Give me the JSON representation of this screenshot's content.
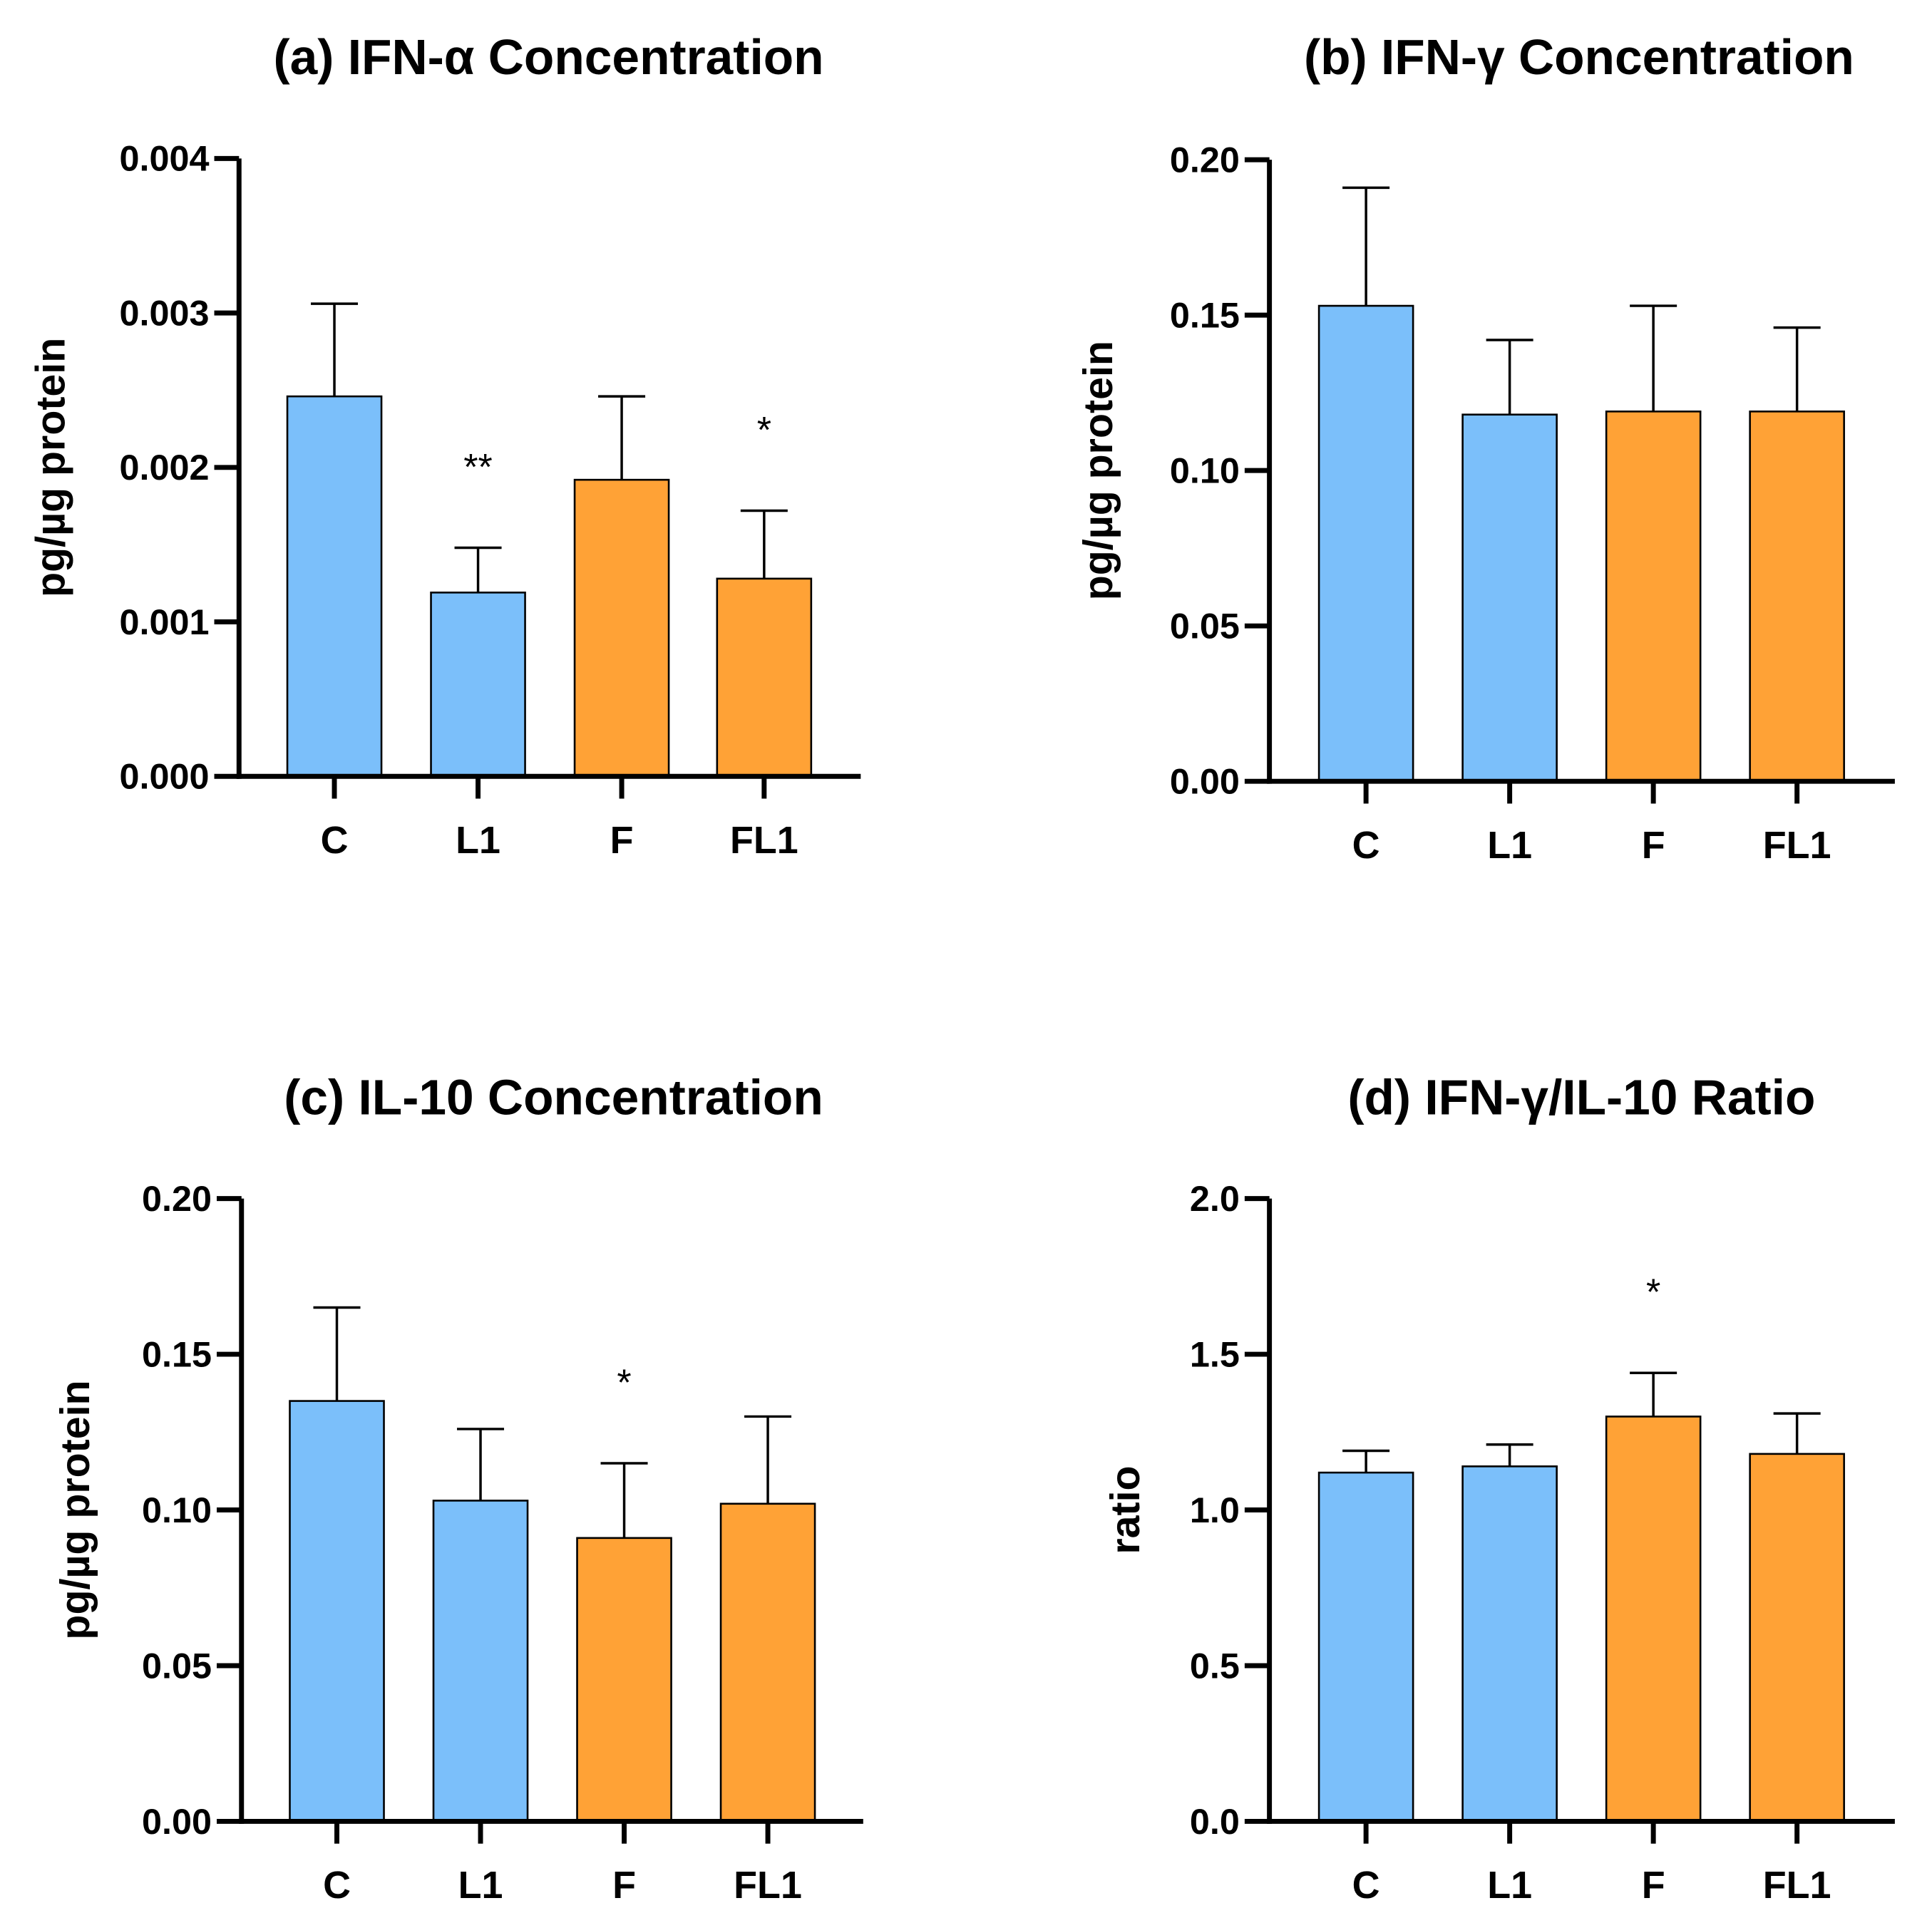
{
  "colors": {
    "blue": "#7bbffa",
    "orange": "#ffa236",
    "axis": "#000000"
  },
  "chart_data": [
    {
      "type": "bar",
      "title": "(a) IFN-α Concentration",
      "ylabel": "pg/µg protein",
      "xlabel": "",
      "categories": [
        "C",
        "L1",
        "F",
        "FL1"
      ],
      "values": [
        0.00246,
        0.00119,
        0.00192,
        0.00128
      ],
      "error_upper": [
        0.00306,
        0.00148,
        0.00246,
        0.00172
      ],
      "bar_colors": [
        "blue",
        "blue",
        "orange",
        "orange"
      ],
      "significance": [
        "",
        "**",
        "",
        "*"
      ],
      "ylim": [
        0,
        0.004
      ],
      "yticks": [
        "0.000",
        "0.001",
        "0.002",
        "0.003",
        "0.004"
      ],
      "ytick_values": [
        0,
        0.001,
        0.002,
        0.003,
        0.004
      ],
      "grid": false
    },
    {
      "type": "bar",
      "title": "(b) IFN-γ Concentration",
      "ylabel": "pg/µg protein",
      "xlabel": "",
      "categories": [
        "C",
        "L1",
        "F",
        "FL1"
      ],
      "values": [
        0.153,
        0.118,
        0.119,
        0.119
      ],
      "error_upper": [
        0.191,
        0.142,
        0.153,
        0.146
      ],
      "bar_colors": [
        "blue",
        "blue",
        "orange",
        "orange"
      ],
      "significance": [
        "",
        "",
        "",
        ""
      ],
      "ylim": [
        0,
        0.2
      ],
      "yticks": [
        "0.00",
        "0.05",
        "0.10",
        "0.15",
        "0.20"
      ],
      "ytick_values": [
        0,
        0.05,
        0.1,
        0.15,
        0.2
      ],
      "grid": false
    },
    {
      "type": "bar",
      "title": "(c) IL-10 Concentration",
      "ylabel": "pg/µg protein",
      "xlabel": "",
      "categories": [
        "C",
        "L1",
        "F",
        "FL1"
      ],
      "values": [
        0.135,
        0.103,
        0.091,
        0.102
      ],
      "error_upper": [
        0.165,
        0.126,
        0.115,
        0.13
      ],
      "bar_colors": [
        "blue",
        "blue",
        "orange",
        "orange"
      ],
      "significance": [
        "",
        "",
        "*",
        ""
      ],
      "ylim": [
        0,
        0.2
      ],
      "yticks": [
        "0.00",
        "0.05",
        "0.10",
        "0.15",
        "0.20"
      ],
      "ytick_values": [
        0,
        0.05,
        0.1,
        0.15,
        0.2
      ],
      "grid": false
    },
    {
      "type": "bar",
      "title": "(d) IFN-γ/IL-10 Ratio",
      "ylabel": "ratio",
      "xlabel": "",
      "categories": [
        "C",
        "L1",
        "F",
        "FL1"
      ],
      "values": [
        1.12,
        1.14,
        1.3,
        1.18
      ],
      "error_upper": [
        1.19,
        1.21,
        1.44,
        1.31
      ],
      "bar_colors": [
        "blue",
        "blue",
        "orange",
        "orange"
      ],
      "significance": [
        "",
        "",
        "*",
        ""
      ],
      "ylim": [
        0,
        2.0
      ],
      "yticks": [
        "0.0",
        "0.5",
        "1.0",
        "1.5",
        "2.0"
      ],
      "ytick_values": [
        0,
        0.5,
        1.0,
        1.5,
        2.0
      ],
      "grid": false
    }
  ]
}
